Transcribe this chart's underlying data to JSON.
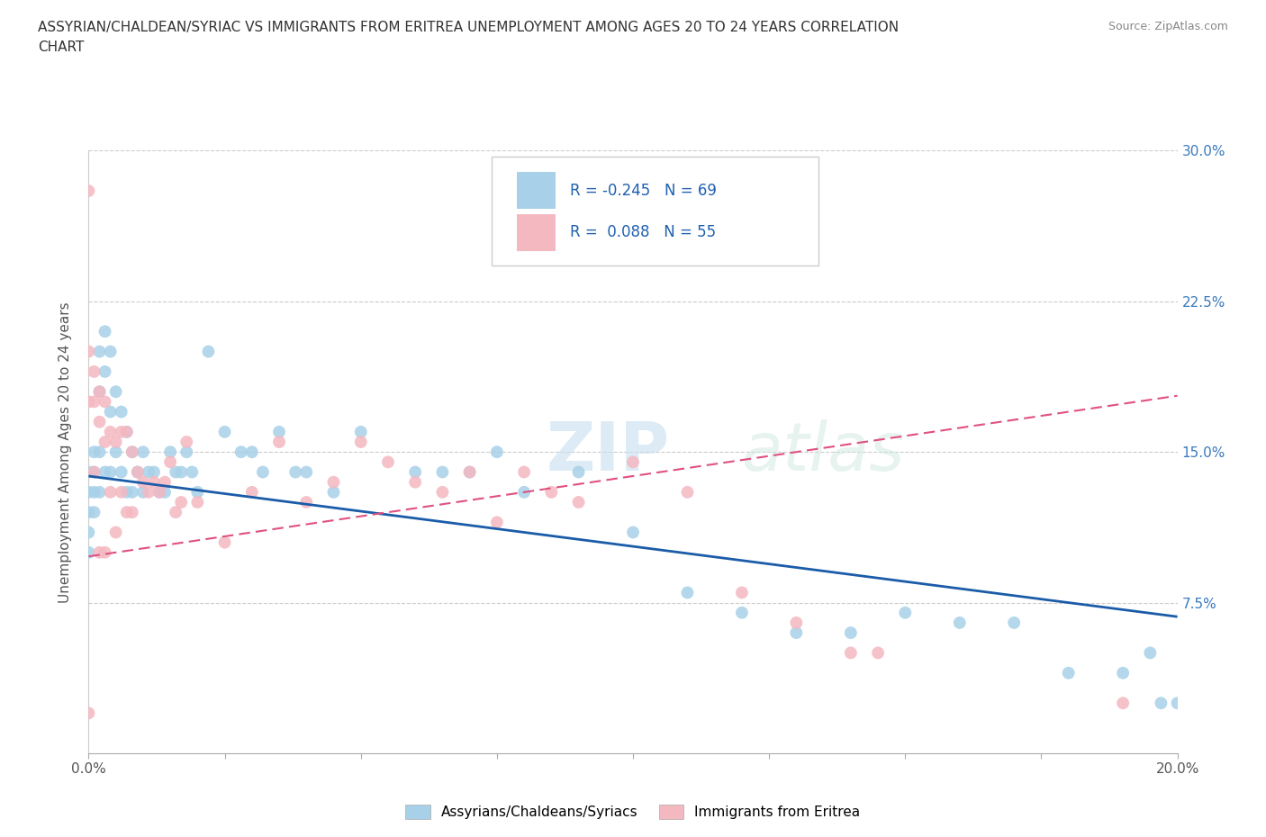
{
  "title_line1": "ASSYRIAN/CHALDEAN/SYRIAC VS IMMIGRANTS FROM ERITREA UNEMPLOYMENT AMONG AGES 20 TO 24 YEARS CORRELATION",
  "title_line2": "CHART",
  "source": "Source: ZipAtlas.com",
  "ylabel": "Unemployment Among Ages 20 to 24 years",
  "watermark": "ZIPatlas",
  "legend_labels": [
    "Assyrians/Chaldeans/Syriacs",
    "Immigrants from Eritrea"
  ],
  "R_blue": -0.245,
  "N_blue": 69,
  "R_pink": 0.088,
  "N_pink": 55,
  "blue_color": "#a8d0e8",
  "pink_color": "#f4b8c1",
  "blue_line_color": "#1a5ca8",
  "pink_line_color": "#e05080",
  "xmin": 0.0,
  "xmax": 0.2,
  "ymin": 0.0,
  "ymax": 0.3,
  "yticks": [
    0.0,
    0.075,
    0.15,
    0.225,
    0.3
  ],
  "ytick_labels": [
    "",
    "7.5%",
    "15.0%",
    "22.5%",
    "30.0%"
  ],
  "xticks": [
    0.0,
    0.025,
    0.05,
    0.075,
    0.1,
    0.125,
    0.15,
    0.175,
    0.2
  ],
  "xtick_labels": [
    "0.0%",
    "",
    "",
    "",
    "",
    "",
    "",
    "",
    "20.0%"
  ],
  "blue_x": [
    0.0,
    0.0,
    0.0,
    0.0,
    0.0,
    0.001,
    0.001,
    0.001,
    0.001,
    0.002,
    0.002,
    0.002,
    0.002,
    0.003,
    0.003,
    0.003,
    0.004,
    0.004,
    0.004,
    0.005,
    0.005,
    0.006,
    0.006,
    0.007,
    0.007,
    0.008,
    0.008,
    0.009,
    0.01,
    0.01,
    0.011,
    0.012,
    0.013,
    0.014,
    0.015,
    0.016,
    0.017,
    0.018,
    0.019,
    0.02,
    0.022,
    0.025,
    0.028,
    0.03,
    0.032,
    0.035,
    0.038,
    0.04,
    0.045,
    0.05,
    0.06,
    0.065,
    0.07,
    0.075,
    0.08,
    0.09,
    0.1,
    0.11,
    0.12,
    0.13,
    0.14,
    0.15,
    0.16,
    0.17,
    0.18,
    0.19,
    0.195,
    0.197,
    0.2
  ],
  "blue_y": [
    0.14,
    0.13,
    0.12,
    0.11,
    0.1,
    0.15,
    0.14,
    0.13,
    0.12,
    0.2,
    0.18,
    0.15,
    0.13,
    0.21,
    0.19,
    0.14,
    0.2,
    0.17,
    0.14,
    0.18,
    0.15,
    0.17,
    0.14,
    0.16,
    0.13,
    0.15,
    0.13,
    0.14,
    0.15,
    0.13,
    0.14,
    0.14,
    0.13,
    0.13,
    0.15,
    0.14,
    0.14,
    0.15,
    0.14,
    0.13,
    0.2,
    0.16,
    0.15,
    0.15,
    0.14,
    0.16,
    0.14,
    0.14,
    0.13,
    0.16,
    0.14,
    0.14,
    0.14,
    0.15,
    0.13,
    0.14,
    0.11,
    0.08,
    0.07,
    0.06,
    0.06,
    0.07,
    0.065,
    0.065,
    0.04,
    0.04,
    0.05,
    0.025,
    0.025
  ],
  "pink_x": [
    0.0,
    0.0,
    0.0,
    0.0,
    0.001,
    0.001,
    0.001,
    0.002,
    0.002,
    0.002,
    0.003,
    0.003,
    0.003,
    0.004,
    0.004,
    0.005,
    0.005,
    0.006,
    0.006,
    0.007,
    0.007,
    0.008,
    0.008,
    0.009,
    0.01,
    0.011,
    0.012,
    0.013,
    0.014,
    0.015,
    0.016,
    0.017,
    0.018,
    0.02,
    0.025,
    0.03,
    0.035,
    0.04,
    0.045,
    0.05,
    0.055,
    0.06,
    0.065,
    0.07,
    0.075,
    0.08,
    0.085,
    0.09,
    0.1,
    0.11,
    0.12,
    0.13,
    0.14,
    0.145,
    0.19
  ],
  "pink_y": [
    0.28,
    0.2,
    0.175,
    0.02,
    0.19,
    0.175,
    0.14,
    0.18,
    0.165,
    0.1,
    0.175,
    0.155,
    0.1,
    0.16,
    0.13,
    0.155,
    0.11,
    0.16,
    0.13,
    0.16,
    0.12,
    0.15,
    0.12,
    0.14,
    0.135,
    0.13,
    0.135,
    0.13,
    0.135,
    0.145,
    0.12,
    0.125,
    0.155,
    0.125,
    0.105,
    0.13,
    0.155,
    0.125,
    0.135,
    0.155,
    0.145,
    0.135,
    0.13,
    0.14,
    0.115,
    0.14,
    0.13,
    0.125,
    0.145,
    0.13,
    0.08,
    0.065,
    0.05,
    0.05,
    0.025
  ],
  "blue_line_x": [
    0.0,
    0.2
  ],
  "blue_line_y": [
    0.138,
    0.068
  ],
  "pink_line_x": [
    0.0,
    0.2
  ],
  "pink_line_y": [
    0.098,
    0.178
  ]
}
